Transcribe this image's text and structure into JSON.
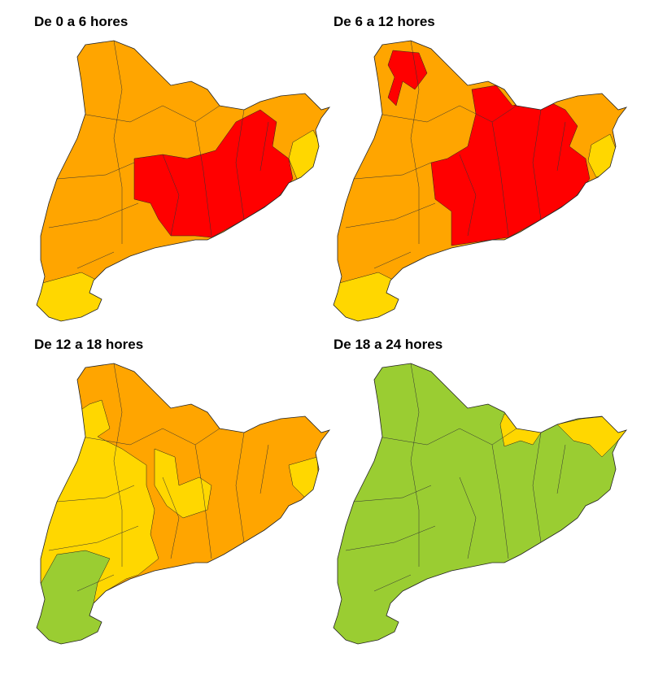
{
  "panels": [
    {
      "title": "De 0 a 6 hores"
    },
    {
      "title": "De 6 a 12 hores"
    },
    {
      "title": "De 12 a 18 hores"
    },
    {
      "title": "De 18 a 24 hores"
    }
  ]
}
